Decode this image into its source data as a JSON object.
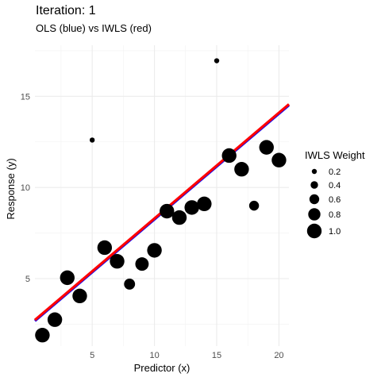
{
  "chart_data": {
    "type": "scatter",
    "title": "Iteration: 1",
    "subtitle": "OLS (blue) vs IWLS (red)",
    "xlabel": "Predictor (x)",
    "ylabel": "Response (y)",
    "xlim": [
      0.4,
      20.8
    ],
    "ylim": [
      1.3,
      17.8
    ],
    "x_ticks": [
      5,
      10,
      15,
      20
    ],
    "y_ticks": [
      5,
      10,
      15
    ],
    "grid": true,
    "legend": {
      "title": "IWLS Weight",
      "entries": [
        "0.2",
        "0.4",
        "0.6",
        "0.8",
        "1.0"
      ],
      "values": [
        0.2,
        0.4,
        0.6,
        0.8,
        1.0
      ],
      "position": "right"
    },
    "points": [
      {
        "x": 1,
        "y": 1.9,
        "weight": 1.0
      },
      {
        "x": 2,
        "y": 2.75,
        "weight": 1.0
      },
      {
        "x": 3,
        "y": 5.05,
        "weight": 1.0
      },
      {
        "x": 4,
        "y": 4.05,
        "weight": 1.0
      },
      {
        "x": 5,
        "y": 12.6,
        "weight": 0.2
      },
      {
        "x": 6,
        "y": 6.7,
        "weight": 1.0
      },
      {
        "x": 7,
        "y": 5.95,
        "weight": 1.0
      },
      {
        "x": 8,
        "y": 4.7,
        "weight": 0.7
      },
      {
        "x": 9,
        "y": 5.8,
        "weight": 0.9
      },
      {
        "x": 10,
        "y": 6.55,
        "weight": 1.0
      },
      {
        "x": 11,
        "y": 8.7,
        "weight": 1.0
      },
      {
        "x": 12,
        "y": 8.35,
        "weight": 1.0
      },
      {
        "x": 13,
        "y": 8.9,
        "weight": 1.0
      },
      {
        "x": 14,
        "y": 9.1,
        "weight": 1.0
      },
      {
        "x": 15,
        "y": 16.95,
        "weight": 0.2
      },
      {
        "x": 16,
        "y": 11.75,
        "weight": 1.0
      },
      {
        "x": 17,
        "y": 11.0,
        "weight": 1.0
      },
      {
        "x": 18,
        "y": 9.0,
        "weight": 0.6
      },
      {
        "x": 19,
        "y": 12.2,
        "weight": 1.0
      },
      {
        "x": 20,
        "y": 11.5,
        "weight": 1.0
      }
    ],
    "lines": [
      {
        "name": "OLS",
        "color": "#0000ff",
        "intercept": 2.45,
        "slope": 0.58
      },
      {
        "name": "IWLS",
        "color": "#ff0000",
        "intercept": 2.5,
        "slope": 0.58
      }
    ]
  }
}
